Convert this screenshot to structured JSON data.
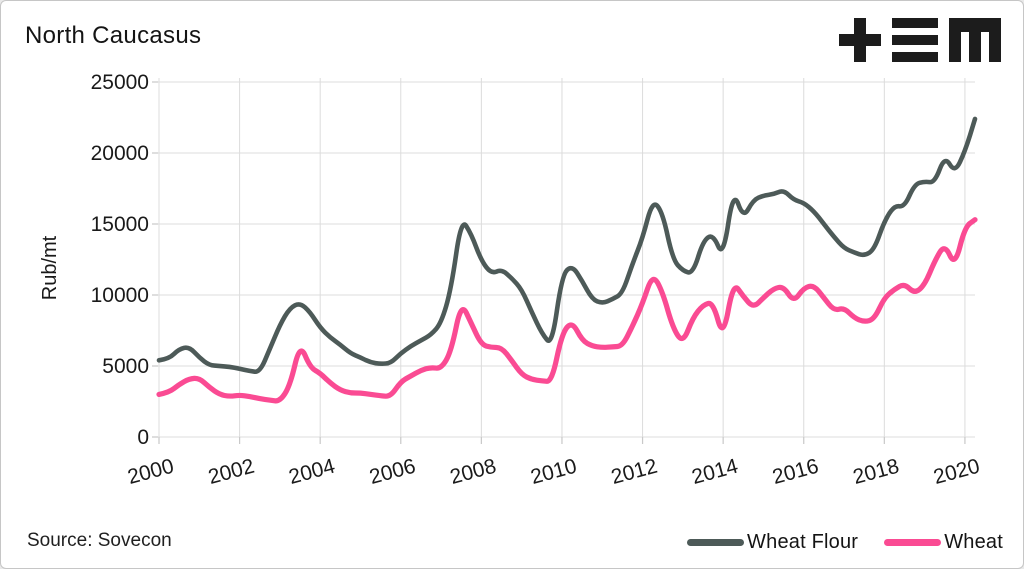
{
  "header": {
    "title": "North Caucasus",
    "logo_icon": "tem-logo"
  },
  "footer": {
    "source": "Source: Sovecon"
  },
  "colors": {
    "grid": "#dcdcdc",
    "tick": "#c9c9c9",
    "text": "#1a1a1a",
    "logo": "#1c1c1c"
  },
  "chart_data": {
    "type": "line",
    "title": "North Caucasus",
    "xlabel": "",
    "ylabel": "Rub/mt",
    "x_unit": "year",
    "x_start": 2000.0,
    "x_step": 0.25,
    "xlim": [
      2000,
      2020.25
    ],
    "ylim": [
      0,
      25000
    ],
    "xticks": [
      2000,
      2002,
      2004,
      2006,
      2008,
      2010,
      2012,
      2014,
      2016,
      2018,
      2020
    ],
    "yticks": [
      0,
      5000,
      10000,
      15000,
      20000,
      25000
    ],
    "grid": true,
    "legend_position": "bottom-right",
    "series": [
      {
        "name": "Wheat Flour",
        "color": "#4d5a58",
        "values": [
          5400,
          5500,
          6200,
          6350,
          5600,
          5050,
          5000,
          4950,
          4800,
          4650,
          4550,
          6200,
          7900,
          9100,
          9450,
          8800,
          7700,
          7000,
          6500,
          5900,
          5600,
          5250,
          5150,
          5200,
          5900,
          6400,
          6800,
          7200,
          8000,
          10400,
          15400,
          14300,
          12400,
          11500,
          11800,
          11200,
          10400,
          8800,
          7300,
          6400,
          11400,
          12100,
          11000,
          9700,
          9400,
          9700,
          10100,
          12200,
          14000,
          16700,
          15800,
          12500,
          11700,
          11500,
          13800,
          14300,
          12600,
          17400,
          15400,
          16700,
          17000,
          17100,
          17400,
          16700,
          16500,
          15900,
          15000,
          14100,
          13300,
          13000,
          12750,
          13200,
          15200,
          16300,
          16200,
          17800,
          18000,
          17900,
          19800,
          18600,
          20100,
          22400
        ]
      },
      {
        "name": "Wheat",
        "color": "#fa4b93",
        "values": [
          3000,
          3150,
          3700,
          4100,
          4150,
          3500,
          3000,
          2850,
          2950,
          2850,
          2700,
          2600,
          2500,
          3600,
          6600,
          4900,
          4500,
          3800,
          3300,
          3100,
          3100,
          3000,
          2900,
          2850,
          3900,
          4300,
          4700,
          4900,
          4800,
          6000,
          9500,
          8000,
          6500,
          6300,
          6300,
          5400,
          4400,
          4050,
          3950,
          3900,
          7300,
          8150,
          6800,
          6400,
          6300,
          6350,
          6400,
          7800,
          9400,
          11500,
          10200,
          7700,
          6600,
          8400,
          9300,
          9500,
          6900,
          10900,
          9900,
          9100,
          9800,
          10450,
          10600,
          9500,
          10500,
          10700,
          9800,
          8900,
          9100,
          8400,
          8100,
          8300,
          9800,
          10400,
          10800,
          10100,
          10700,
          12400,
          13600,
          12000,
          14800,
          15300
        ]
      }
    ]
  }
}
